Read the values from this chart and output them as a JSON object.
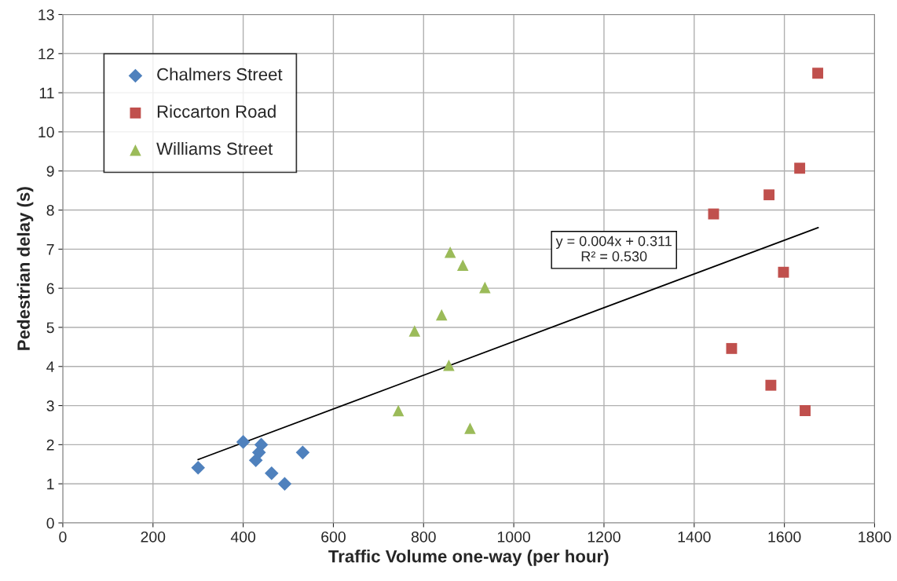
{
  "chart_data": {
    "type": "scatter",
    "xlabel": "Traffic Volume one-way (per hour)",
    "ylabel": "Pedestrian delay (s)",
    "xlim": [
      0,
      1800
    ],
    "xticks": [
      0,
      200,
      400,
      600,
      800,
      1000,
      1200,
      1400,
      1600,
      1800
    ],
    "ylim": [
      0,
      13
    ],
    "yticks": [
      0,
      1,
      2,
      3,
      4,
      5,
      6,
      7,
      8,
      9,
      10,
      11,
      12,
      13
    ],
    "grid": true,
    "legend": "top left",
    "series": [
      {
        "name": "Chalmers Street",
        "color": "#4f81bd",
        "marker": "diamond",
        "x": [
          300,
          400,
          440,
          435,
          428,
          463,
          492,
          532
        ],
        "values": [
          1.41,
          2.07,
          2.0,
          1.8,
          1.6,
          1.27,
          1.0,
          1.8
        ]
      },
      {
        "name": "Riccarton Road",
        "color": "#c0504d",
        "marker": "square",
        "x": [
          1674,
          1634,
          1566,
          1443,
          1598,
          1483,
          1570,
          1646
        ],
        "values": [
          11.5,
          9.07,
          8.39,
          7.9,
          6.41,
          4.46,
          3.52,
          2.87
        ]
      },
      {
        "name": "Williams Street",
        "color": "#9bbb59",
        "marker": "triangle",
        "x": [
          859,
          887,
          936,
          840,
          780,
          856,
          744,
          903
        ],
        "values": [
          6.92,
          6.59,
          6.02,
          5.32,
          4.91,
          4.03,
          2.87,
          2.42
        ]
      },
      {
        "type": "line",
        "color": "#000000",
        "marker": "none",
        "x": [
          300,
          1675
        ],
        "values": [
          1.62,
          7.55
        ]
      }
    ],
    "annotations": [
      "y = 0.004x + 0.311\nR² = 0.530"
    ]
  }
}
